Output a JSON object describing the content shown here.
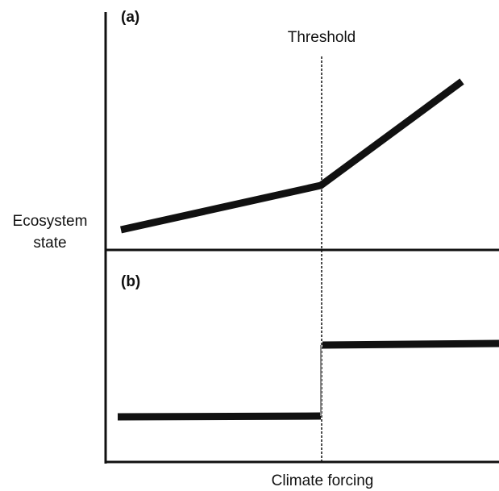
{
  "panels": [
    {
      "label": "(a)"
    },
    {
      "label": "(b)"
    }
  ],
  "threshold_label": "Threshold",
  "y_axis_label": [
    "Ecosystem",
    "state"
  ],
  "x_axis_label": "Climate forcing"
}
